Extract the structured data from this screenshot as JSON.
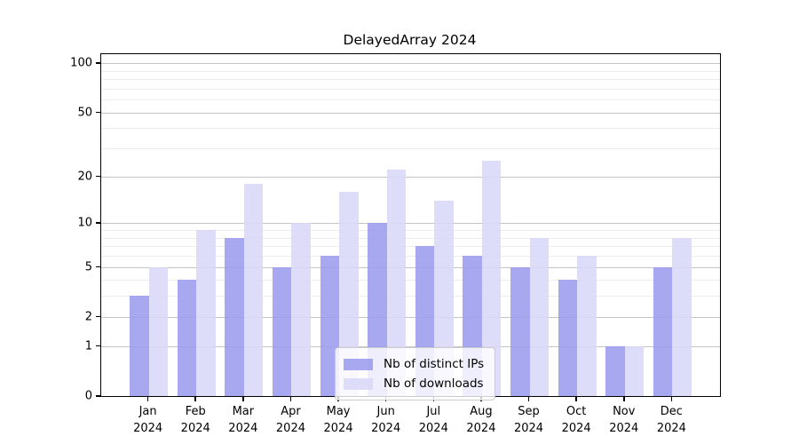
{
  "title": "DelayedArray 2024",
  "chart_data": {
    "type": "bar",
    "title": "DelayedArray 2024",
    "categories": [
      "Jan",
      "Feb",
      "Mar",
      "Apr",
      "May",
      "Jun",
      "Jul",
      "Aug",
      "Sep",
      "Oct",
      "Nov",
      "Dec"
    ],
    "category_year": "2024",
    "series": [
      {
        "name": "Nb of distinct IPs",
        "color": "#9c9cee",
        "values": [
          3,
          4,
          8,
          5,
          6,
          10,
          7,
          6,
          5,
          4,
          1,
          5
        ]
      },
      {
        "name": "Nb of downloads",
        "color": "#d8d8f8",
        "values": [
          5,
          9,
          18,
          10,
          16,
          22,
          14,
          25,
          8,
          6,
          1,
          8
        ]
      }
    ],
    "xlabel": "",
    "ylabel": "",
    "y_scale": "log1p",
    "y_ticks": [
      0,
      1,
      2,
      5,
      10,
      20,
      50,
      100
    ],
    "y_minor_ticks": [
      3,
      4,
      6,
      7,
      8,
      9,
      30,
      40,
      60,
      70,
      80,
      90
    ],
    "y_max": 113.6,
    "grid": true,
    "legend_position": "bottom-center",
    "axis_color": "#000000",
    "grid_major_color": "#c4c4c4",
    "grid_minor_color": "#ececec"
  }
}
